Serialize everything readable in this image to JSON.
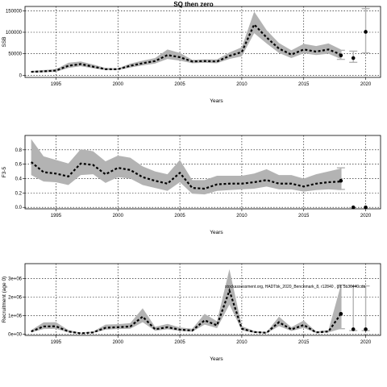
{
  "figure": {
    "title": "SQ then zero",
    "watermark": "stockassessment.org, HADTbk_2020_Benchmark_8, r12840 , git: 5b30440cda"
  },
  "chart_data": [
    {
      "type": "line",
      "ylabel": "SSB",
      "xlabel": "Years",
      "xlim": [
        1992.5,
        2021.2
      ],
      "ylim": [
        -5000,
        160000
      ],
      "xticks": [
        1995,
        2000,
        2005,
        2010,
        2015,
        2020
      ],
      "yticks": [
        0,
        50000,
        100000,
        150000
      ],
      "ytick_labels": [
        "0",
        "50000",
        "100000",
        "150000"
      ],
      "grid": true,
      "series": [
        {
          "x": [
            1993,
            1994,
            1995,
            1996,
            1997,
            1998,
            1999,
            2000,
            2001,
            2002,
            2003,
            2004,
            2005,
            2006,
            2007,
            2008,
            2009,
            2010,
            2011,
            2012,
            2013,
            2014,
            2015,
            2016,
            2017,
            2018
          ],
          "values": [
            8000,
            9000,
            11000,
            22000,
            26000,
            20000,
            14000,
            14000,
            22000,
            28000,
            33000,
            47000,
            42000,
            32000,
            33000,
            32000,
            45000,
            54000,
            118000,
            88000,
            62000,
            48000,
            60000,
            55000,
            60000,
            48000
          ],
          "lower": [
            6000,
            7000,
            8000,
            17000,
            21000,
            16000,
            12000,
            12000,
            18000,
            23000,
            27000,
            38000,
            34000,
            28000,
            29000,
            28000,
            38000,
            44000,
            98000,
            74000,
            52000,
            40000,
            51000,
            47000,
            50000,
            38000
          ],
          "upper": [
            10000,
            12000,
            14000,
            29000,
            32000,
            25000,
            17000,
            16000,
            27000,
            34000,
            40000,
            60000,
            52000,
            36000,
            37000,
            37000,
            53000,
            65000,
            148000,
            105000,
            75000,
            58000,
            73000,
            68000,
            74000,
            60000
          ]
        }
      ],
      "forecast": [
        {
          "x": 2018,
          "value": 46000,
          "lower": 37000,
          "upper": 58000
        },
        {
          "x": 2019,
          "value": 40000,
          "lower": 30000,
          "upper": 56000
        },
        {
          "x": 2020,
          "value": 101000,
          "lower": 52000,
          "upper": 155000
        }
      ]
    },
    {
      "type": "line",
      "ylabel": "F3-5",
      "xlabel": "Years",
      "xlim": [
        1992.5,
        2021.2
      ],
      "ylim": [
        -0.02,
        1.0
      ],
      "xticks": [
        1995,
        2000,
        2005,
        2010,
        2015,
        2020
      ],
      "yticks": [
        0.0,
        0.2,
        0.4,
        0.6,
        0.8
      ],
      "ytick_labels": [
        "0.0",
        "0.2",
        "0.4",
        "0.6",
        "0.8"
      ],
      "grid": true,
      "series": [
        {
          "x": [
            1993,
            1994,
            1995,
            1996,
            1997,
            1998,
            1999,
            2000,
            2001,
            2002,
            2003,
            2004,
            2005,
            2006,
            2007,
            2008,
            2009,
            2010,
            2011,
            2012,
            2013,
            2014,
            2015,
            2016,
            2017,
            2018
          ],
          "values": [
            0.63,
            0.49,
            0.47,
            0.43,
            0.61,
            0.59,
            0.46,
            0.55,
            0.52,
            0.42,
            0.37,
            0.33,
            0.48,
            0.27,
            0.26,
            0.32,
            0.33,
            0.33,
            0.35,
            0.38,
            0.33,
            0.33,
            0.29,
            0.33,
            0.35,
            0.36
          ],
          "lower": [
            0.45,
            0.36,
            0.35,
            0.31,
            0.45,
            0.46,
            0.34,
            0.42,
            0.4,
            0.31,
            0.27,
            0.23,
            0.35,
            0.19,
            0.18,
            0.23,
            0.24,
            0.25,
            0.26,
            0.29,
            0.25,
            0.25,
            0.22,
            0.24,
            0.25,
            0.24
          ],
          "upper": [
            0.95,
            0.71,
            0.66,
            0.61,
            0.81,
            0.78,
            0.64,
            0.72,
            0.69,
            0.57,
            0.5,
            0.46,
            0.66,
            0.38,
            0.38,
            0.44,
            0.44,
            0.44,
            0.47,
            0.53,
            0.45,
            0.45,
            0.4,
            0.46,
            0.5,
            0.54
          ]
        }
      ],
      "forecast": [
        {
          "x": 2018,
          "value": 0.37,
          "lower": 0.25,
          "upper": 0.55
        },
        {
          "x": 2019,
          "value": 0.0,
          "lower": 0.0,
          "upper": 0.0
        },
        {
          "x": 2020,
          "value": 0.0,
          "lower": 0.0,
          "upper": 0.0
        }
      ]
    },
    {
      "type": "line",
      "ylabel": "Recruitment (age 0)",
      "xlabel": "Years",
      "xlim": [
        1992.5,
        2021.2
      ],
      "ylim": [
        -60000,
        3800000
      ],
      "xticks": [
        1995,
        2000,
        2005,
        2010,
        2015,
        2020
      ],
      "yticks": [
        0,
        1000000,
        2000000,
        3000000
      ],
      "ytick_labels": [
        "0e+00",
        "1e+06",
        "2e+06",
        "3e+06"
      ],
      "grid": true,
      "series": [
        {
          "x": [
            1993,
            1994,
            1995,
            1996,
            1997,
            1998,
            1999,
            2000,
            2001,
            2002,
            2003,
            2004,
            2005,
            2006,
            2007,
            2008,
            2009,
            2010,
            2011,
            2012,
            2013,
            2014,
            2015,
            2016,
            2017,
            2018
          ],
          "values": [
            150000,
            420000,
            430000,
            150000,
            50000,
            100000,
            350000,
            380000,
            420000,
            950000,
            270000,
            380000,
            250000,
            200000,
            750000,
            480000,
            2350000,
            300000,
            120000,
            80000,
            650000,
            260000,
            500000,
            100000,
            150000,
            1100000
          ],
          "lower": [
            100000,
            280000,
            290000,
            100000,
            30000,
            70000,
            250000,
            280000,
            300000,
            650000,
            190000,
            270000,
            180000,
            140000,
            520000,
            330000,
            1600000,
            210000,
            80000,
            50000,
            440000,
            180000,
            340000,
            70000,
            100000,
            300000
          ],
          "upper": [
            220000,
            640000,
            650000,
            230000,
            80000,
            150000,
            520000,
            540000,
            600000,
            1400000,
            400000,
            560000,
            370000,
            300000,
            1100000,
            700000,
            3500000,
            440000,
            180000,
            120000,
            950000,
            380000,
            740000,
            150000,
            230000,
            2650000
          ]
        }
      ],
      "forecast": [
        {
          "x": 2018,
          "value": 1100000,
          "lower": 300000,
          "upper": 2650000
        },
        {
          "x": 2019,
          "value": 270000,
          "lower": 200000,
          "upper": 2600000
        },
        {
          "x": 2020,
          "value": 270000,
          "lower": 200000,
          "upper": 2600000
        }
      ]
    }
  ]
}
